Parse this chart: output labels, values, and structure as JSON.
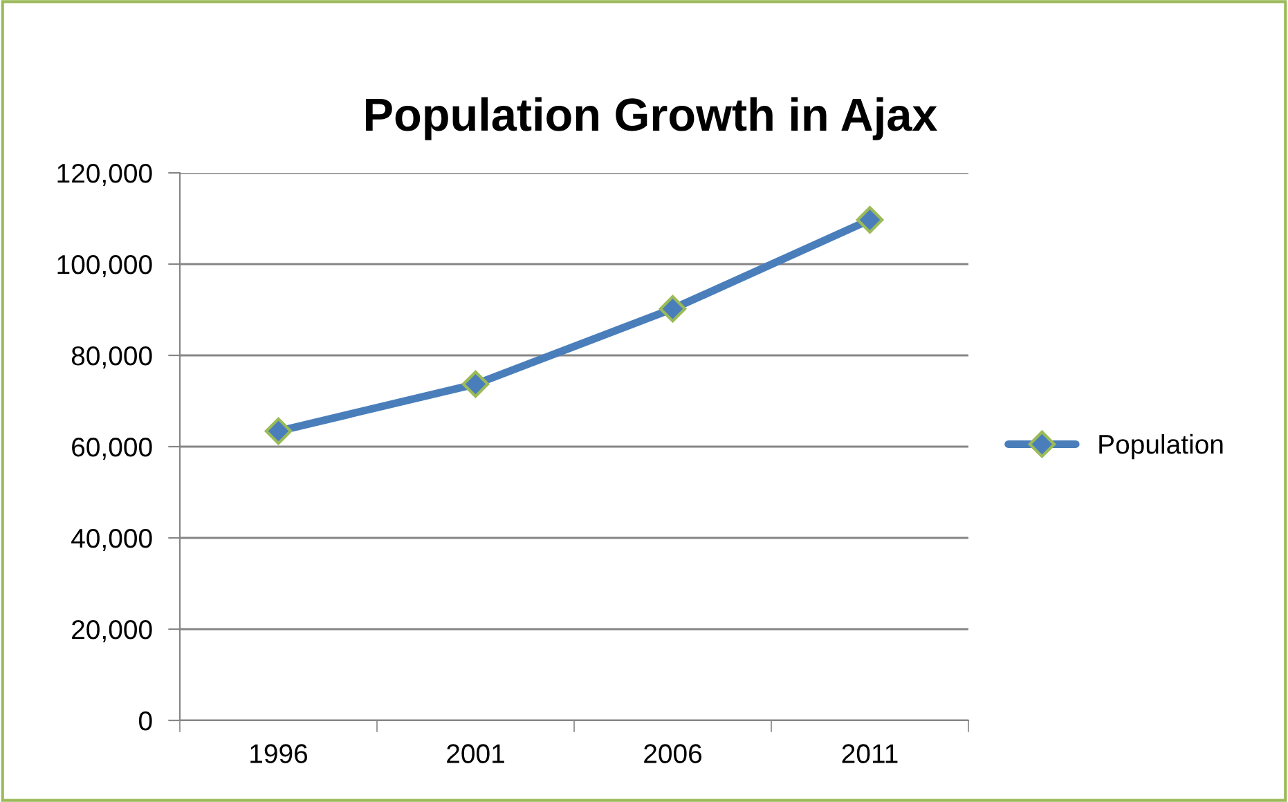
{
  "chart_data": {
    "type": "line",
    "title": "Population Growth in Ajax",
    "categories": [
      "1996",
      "2001",
      "2006",
      "2011"
    ],
    "series": [
      {
        "name": "Population",
        "color": "#4a7ebb",
        "values": [
          63400,
          73700,
          90200,
          109700
        ]
      }
    ],
    "ylim": [
      0,
      120000
    ],
    "yticks": [
      {
        "value": 0,
        "label": "0"
      },
      {
        "value": 20000,
        "label": "20,000"
      },
      {
        "value": 40000,
        "label": "40,000"
      },
      {
        "value": 60000,
        "label": "60,000"
      },
      {
        "value": 80000,
        "label": "80,000"
      },
      {
        "value": 100000,
        "label": "100,000"
      },
      {
        "value": 120000,
        "label": "120,000"
      }
    ],
    "grid": "y",
    "legend": "right",
    "marker": "diamond",
    "line_style": "solid"
  }
}
